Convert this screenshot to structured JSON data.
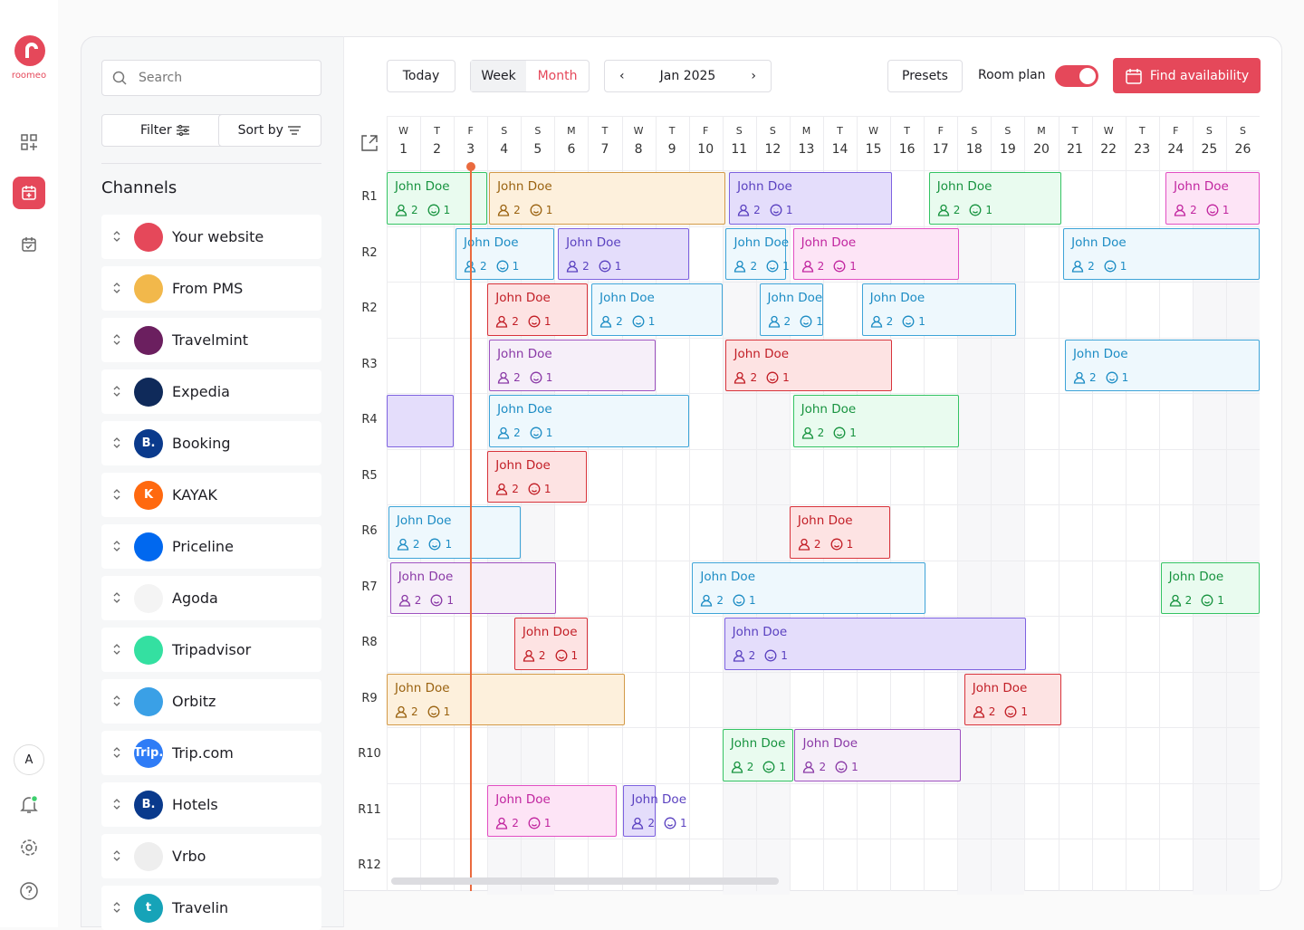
{
  "brand": "roomeo",
  "nav": {
    "avatar": "A"
  },
  "search": "Search",
  "filter": "Filter",
  "sort": "Sort by",
  "channels_title": "Channels",
  "channels": [
    {
      "name": "Your website",
      "color": "#e5485a"
    },
    {
      "name": "From PMS",
      "color": "#f2b84b"
    },
    {
      "name": "Travelmint",
      "color": "#6b1f5f"
    },
    {
      "name": "Expedia",
      "color": "#0f2a5a"
    },
    {
      "name": "Booking",
      "color": "#0a3a8c",
      "icon": "B."
    },
    {
      "name": "KAYAK",
      "color": "#ff690f",
      "icon": "K"
    },
    {
      "name": "Priceline",
      "color": "#0068ef"
    },
    {
      "name": "Agoda",
      "color": "#f4f4f4"
    },
    {
      "name": "Tripadvisor",
      "color": "#34e0a1"
    },
    {
      "name": "Orbitz",
      "color": "#3aa0e6"
    },
    {
      "name": "Trip.com",
      "color": "#2f7cf6",
      "icon": "Trip."
    },
    {
      "name": "Hotels",
      "color": "#0a3a8c",
      "icon": "B."
    },
    {
      "name": "Vrbo",
      "color": "#eeeeee"
    },
    {
      "name": "Travelin",
      "color": "#16a3b8",
      "icon": "t"
    }
  ],
  "toolbar": {
    "today": "Today",
    "week": "Week",
    "month": "Month",
    "period": "Jan 2025",
    "presets": "Presets",
    "room_plan": "Room plan",
    "find": "Find availability"
  },
  "days": [
    [
      "W",
      1
    ],
    [
      "T",
      2
    ],
    [
      "F",
      3
    ],
    [
      "S",
      4
    ],
    [
      "S",
      5
    ],
    [
      "M",
      6
    ],
    [
      "T",
      7
    ],
    [
      "W",
      8
    ],
    [
      "T",
      9
    ],
    [
      "F",
      10
    ],
    [
      "S",
      11
    ],
    [
      "S",
      12
    ],
    [
      "M",
      13
    ],
    [
      "T",
      14
    ],
    [
      "W",
      15
    ],
    [
      "T",
      16
    ],
    [
      "F",
      17
    ],
    [
      "S",
      18
    ],
    [
      "S",
      19
    ],
    [
      "M",
      20
    ],
    [
      "T",
      21
    ],
    [
      "W",
      22
    ],
    [
      "T",
      23
    ],
    [
      "F",
      24
    ],
    [
      "S",
      25
    ],
    [
      "S",
      26
    ]
  ],
  "today": 3,
  "rooms": [
    "R1",
    "R2",
    "R2",
    "R3",
    "R4",
    "R5",
    "R6",
    "R7",
    "R8",
    "R9",
    "R10",
    "R11",
    "R12"
  ],
  "bookings": [
    {
      "row": 0,
      "start": 1,
      "end": 4,
      "name": "John Doe",
      "adults": 2,
      "children": 1,
      "color": "green"
    },
    {
      "row": 0,
      "start": 4.05,
      "end": 11.1,
      "name": "John Doe",
      "adults": 2,
      "children": 1,
      "color": "orange"
    },
    {
      "row": 0,
      "start": 11.2,
      "end": 16.05,
      "name": "John Doe",
      "adults": 2,
      "children": 1,
      "color": "purple"
    },
    {
      "row": 0,
      "start": 17.15,
      "end": 21.1,
      "name": "John Doe",
      "adults": 2,
      "children": 1,
      "color": "green"
    },
    {
      "row": 0,
      "start": 24.2,
      "end": 27,
      "name": "John Doe",
      "adults": 2,
      "children": 1,
      "color": "pink"
    },
    {
      "row": 1,
      "start": 3.05,
      "end": 6,
      "name": "John Doe",
      "adults": 2,
      "children": 1,
      "color": "blue"
    },
    {
      "row": 1,
      "start": 6.1,
      "end": 10,
      "name": "John Doe",
      "adults": 2,
      "children": 1,
      "color": "purple"
    },
    {
      "row": 1,
      "start": 11.1,
      "end": 12.9,
      "name": "John Doe",
      "adults": 2,
      "children": 1,
      "color": "blue"
    },
    {
      "row": 1,
      "start": 13.1,
      "end": 18.05,
      "name": "John Doe",
      "adults": 2,
      "children": 1,
      "color": "pink"
    },
    {
      "row": 1,
      "start": 21.15,
      "end": 27,
      "name": "John Doe",
      "adults": 2,
      "children": 1,
      "color": "blue"
    },
    {
      "row": 2,
      "start": 4,
      "end": 7,
      "name": "John Doe",
      "adults": 2,
      "children": 1,
      "color": "red"
    },
    {
      "row": 2,
      "start": 7.1,
      "end": 11,
      "name": "John Doe",
      "adults": 2,
      "children": 1,
      "color": "blue"
    },
    {
      "row": 2,
      "start": 12.1,
      "end": 14,
      "name": "John Doe",
      "adults": 2,
      "children": 1,
      "color": "blue"
    },
    {
      "row": 2,
      "start": 15.15,
      "end": 19.75,
      "name": "John Doe",
      "adults": 2,
      "children": 1,
      "color": "blue"
    },
    {
      "row": 3,
      "start": 4.05,
      "end": 9,
      "name": "John Doe",
      "adults": 2,
      "children": 1,
      "color": "lavender"
    },
    {
      "row": 3,
      "start": 11.1,
      "end": 16.05,
      "name": "John Doe",
      "adults": 2,
      "children": 1,
      "color": "red"
    },
    {
      "row": 3,
      "start": 21.2,
      "end": 27,
      "name": "John Doe",
      "adults": 2,
      "children": 1,
      "color": "blue"
    },
    {
      "row": 4,
      "start": 1,
      "end": 3,
      "color": "purple"
    },
    {
      "row": 4,
      "start": 4.05,
      "end": 10,
      "name": "John Doe",
      "adults": 2,
      "children": 1,
      "color": "blue"
    },
    {
      "row": 4,
      "start": 13.1,
      "end": 18.05,
      "name": "John Doe",
      "adults": 2,
      "children": 1,
      "color": "green"
    },
    {
      "row": 5,
      "start": 4,
      "end": 6.95,
      "name": "John Doe",
      "adults": 2,
      "children": 1,
      "color": "red"
    },
    {
      "row": 6,
      "start": 1.05,
      "end": 5,
      "name": "John Doe",
      "adults": 2,
      "children": 1,
      "color": "blue"
    },
    {
      "row": 6,
      "start": 13,
      "end": 16,
      "name": "John Doe",
      "adults": 2,
      "children": 1,
      "color": "red"
    },
    {
      "row": 7,
      "start": 1.1,
      "end": 6.05,
      "name": "John Doe",
      "adults": 2,
      "children": 1,
      "color": "lavender"
    },
    {
      "row": 7,
      "start": 10.1,
      "end": 17.05,
      "name": "John Doe",
      "adults": 2,
      "children": 1,
      "color": "blue"
    },
    {
      "row": 7,
      "start": 24.05,
      "end": 27,
      "name": "John Doe",
      "adults": 2,
      "children": 1,
      "color": "green"
    },
    {
      "row": 8,
      "start": 4.8,
      "end": 7,
      "name": "John Doe",
      "adults": 2,
      "children": 1,
      "color": "red"
    },
    {
      "row": 8,
      "start": 11.05,
      "end": 20.05,
      "name": "John Doe",
      "adults": 2,
      "children": 1,
      "color": "purple"
    },
    {
      "row": 9,
      "start": 1,
      "end": 8.1,
      "name": "John Doe",
      "adults": 2,
      "children": 1,
      "color": "orange"
    },
    {
      "row": 9,
      "start": 18.2,
      "end": 21.1,
      "name": "John Doe",
      "adults": 2,
      "children": 1,
      "color": "red"
    },
    {
      "row": 10,
      "start": 11,
      "end": 13.1,
      "name": "John Doe",
      "adults": 2,
      "children": 1,
      "color": "green"
    },
    {
      "row": 10,
      "start": 13.15,
      "end": 18.1,
      "name": "John Doe",
      "adults": 2,
      "children": 1,
      "color": "lavender"
    },
    {
      "row": 11,
      "start": 4,
      "end": 7.85,
      "name": "John Doe",
      "adults": 2,
      "children": 1,
      "color": "pink"
    },
    {
      "row": 11,
      "start": 8.05,
      "end": 9,
      "name": "John Doe",
      "adults": 2,
      "children": 1,
      "color": "purple"
    }
  ]
}
